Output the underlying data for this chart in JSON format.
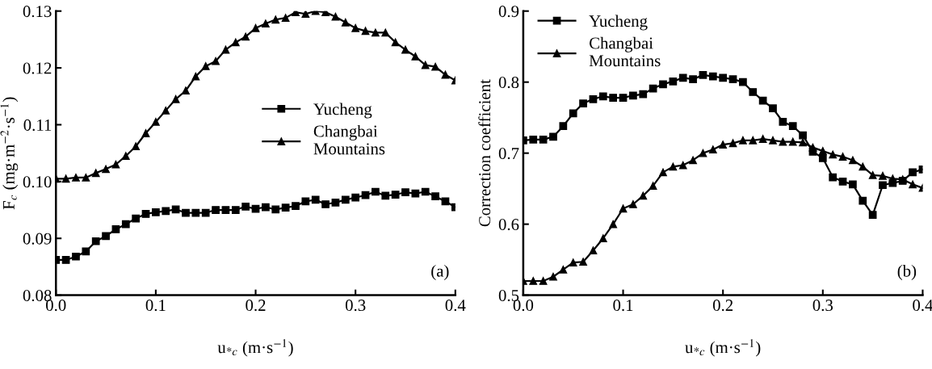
{
  "chart_data": [
    {
      "type": "line",
      "xlabel": "u$_{*c}$ (m·s$^{−1}$)",
      "ylabel": "F$_{c}$ (mg·m$^{−2}$·s$^{−1}$)",
      "annotations": [
        "(a)"
      ],
      "x": [
        0.0,
        0.01,
        0.02,
        0.03,
        0.04,
        0.05,
        0.06,
        0.07,
        0.08,
        0.09,
        0.1,
        0.11,
        0.12,
        0.13,
        0.14,
        0.15,
        0.16,
        0.17,
        0.18,
        0.19,
        0.2,
        0.21,
        0.22,
        0.23,
        0.24,
        0.25,
        0.26,
        0.27,
        0.28,
        0.29,
        0.3,
        0.31,
        0.32,
        0.33,
        0.34,
        0.35,
        0.36,
        0.37,
        0.38,
        0.39,
        0.4
      ],
      "series": [
        {
          "name": "Yucheng",
          "color": "#000000",
          "marker": "square",
          "values": [
            0.0862,
            0.0862,
            0.0868,
            0.0877,
            0.0895,
            0.0904,
            0.0916,
            0.0925,
            0.0935,
            0.0943,
            0.0946,
            0.0948,
            0.0951,
            0.0945,
            0.0945,
            0.0945,
            0.095,
            0.095,
            0.095,
            0.0956,
            0.0952,
            0.0955,
            0.0951,
            0.0954,
            0.0957,
            0.0965,
            0.0968,
            0.096,
            0.0963,
            0.0968,
            0.0972,
            0.0976,
            0.0982,
            0.0975,
            0.0977,
            0.0981,
            0.0979,
            0.0982,
            0.0974,
            0.0965,
            0.0955
          ]
        },
        {
          "name": "Changbai\nMountains",
          "color": "#000000",
          "marker": "triangle",
          "values": [
            0.1005,
            0.1005,
            0.1007,
            0.1007,
            0.1015,
            0.1022,
            0.103,
            0.1045,
            0.1062,
            0.1085,
            0.1105,
            0.1125,
            0.1145,
            0.116,
            0.1185,
            0.1203,
            0.1212,
            0.1232,
            0.1245,
            0.1255,
            0.127,
            0.1278,
            0.1285,
            0.1288,
            0.1298,
            0.1295,
            0.13,
            0.1298,
            0.129,
            0.128,
            0.127,
            0.1265,
            0.1262,
            0.1262,
            0.1245,
            0.1232,
            0.122,
            0.1205,
            0.1202,
            0.1188,
            0.1178
          ]
        }
      ],
      "xlim": [
        0,
        0.4
      ],
      "xticks": [
        {
          "value": 0,
          "label": "0.0"
        },
        0.1,
        0.2,
        0.3,
        0.4
      ],
      "ylim": [
        0.08,
        0.13
      ],
      "yticks": [
        0.08,
        0.09,
        {
          "value": 0.1,
          "label": "0.10"
        },
        0.11,
        0.12,
        0.13
      ],
      "legend": "center right",
      "grid": false
    },
    {
      "type": "line",
      "xlabel": "u$_{*c}$ (m·s$^{−1}$)",
      "ylabel": "Correction coefficient",
      "annotations": [
        "(b)"
      ],
      "x": [
        0.0,
        0.01,
        0.02,
        0.03,
        0.04,
        0.05,
        0.06,
        0.07,
        0.08,
        0.09,
        0.1,
        0.11,
        0.12,
        0.13,
        0.14,
        0.15,
        0.16,
        0.17,
        0.18,
        0.19,
        0.2,
        0.21,
        0.22,
        0.23,
        0.24,
        0.25,
        0.26,
        0.27,
        0.28,
        0.29,
        0.3,
        0.31,
        0.32,
        0.33,
        0.34,
        0.35,
        0.36,
        0.37,
        0.38,
        0.39,
        0.4
      ],
      "series": [
        {
          "name": "Yucheng",
          "color": "#000000",
          "marker": "square",
          "values": [
            0.718,
            0.719,
            0.719,
            0.723,
            0.738,
            0.756,
            0.77,
            0.776,
            0.78,
            0.778,
            0.778,
            0.781,
            0.783,
            0.791,
            0.797,
            0.801,
            0.806,
            0.804,
            0.81,
            0.808,
            0.806,
            0.804,
            0.8,
            0.786,
            0.774,
            0.763,
            0.744,
            0.738,
            0.725,
            0.702,
            0.693,
            0.666,
            0.66,
            0.656,
            0.633,
            0.613,
            0.655,
            0.658,
            0.661,
            0.673,
            0.677
          ]
        },
        {
          "name": "Changbai\nMountains",
          "color": "#000000",
          "marker": "triangle",
          "values": [
            0.52,
            0.52,
            0.52,
            0.526,
            0.536,
            0.546,
            0.547,
            0.563,
            0.58,
            0.6,
            0.622,
            0.628,
            0.64,
            0.654,
            0.673,
            0.681,
            0.683,
            0.69,
            0.7,
            0.705,
            0.712,
            0.714,
            0.718,
            0.718,
            0.72,
            0.718,
            0.716,
            0.716,
            0.715,
            0.708,
            0.703,
            0.698,
            0.695,
            0.69,
            0.681,
            0.669,
            0.668,
            0.664,
            0.663,
            0.656,
            0.651
          ]
        }
      ],
      "xlim": [
        0,
        0.4
      ],
      "xticks": [
        {
          "value": 0,
          "label": "0.0"
        },
        0.1,
        0.2,
        0.3,
        0.4
      ],
      "ylim": [
        0.5,
        0.9
      ],
      "yticks": [
        0.5,
        0.6,
        0.7,
        0.8,
        0.9
      ],
      "legend": "upper left",
      "grid": false
    }
  ]
}
